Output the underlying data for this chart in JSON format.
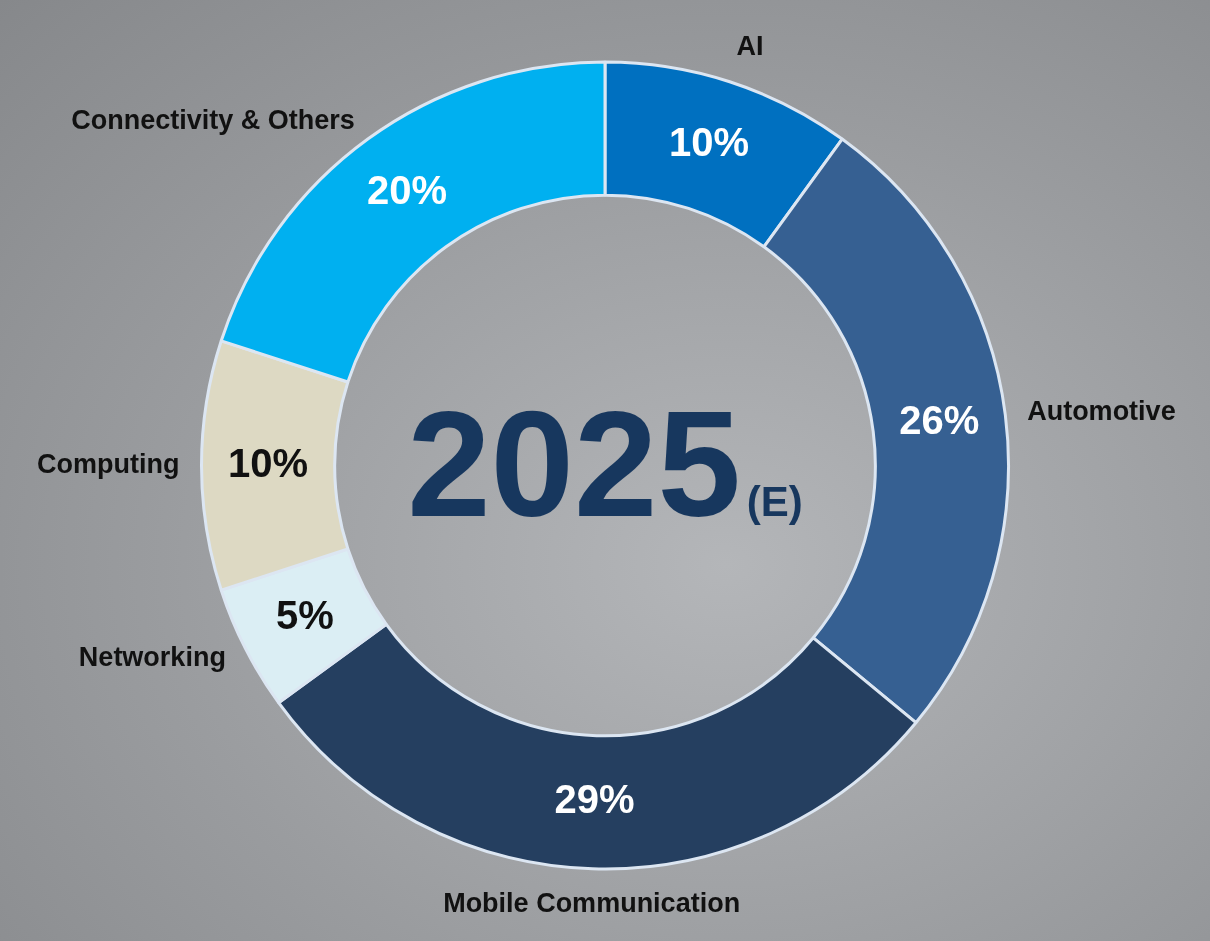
{
  "chart_data": {
    "type": "donut",
    "title": "2025",
    "subtitle": "(E)",
    "categories": [
      "AI",
      "Automotive",
      "Mobile Communication",
      "Networking",
      "Computing",
      "Connectivity & Others"
    ],
    "values": [
      10,
      26,
      29,
      5,
      10,
      20
    ],
    "value_labels": [
      "10%",
      "26%",
      "29%",
      "5%",
      "10%",
      "20%"
    ],
    "colors": [
      "#0070c0",
      "#366092",
      "#253f60",
      "#dbeef4",
      "#ddd9c3",
      "#00b0f0"
    ],
    "legend": false
  }
}
